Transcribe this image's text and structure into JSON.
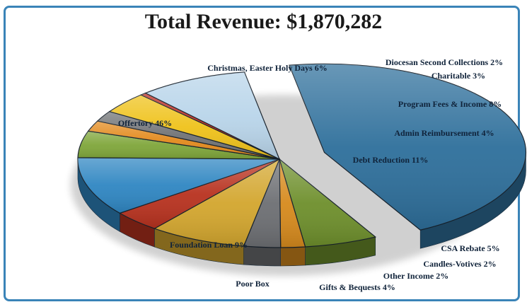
{
  "chart_data": {
    "type": "pie",
    "title": "Total Revenue: $1,870,282",
    "slices": [
      {
        "label": "Offertory 46%",
        "value": 46,
        "color": "#2e6f9b"
      },
      {
        "label": "Christmas, Easter Holy Days 6%",
        "value": 6,
        "color": "#6e8f2c"
      },
      {
        "label": "Diocesan Second Collections 2%",
        "value": 2,
        "color": "#d68a1d"
      },
      {
        "label": "Charitable 3%",
        "value": 3,
        "color": "#6d6f73"
      },
      {
        "label": "Program Fees & Income 8%",
        "value": 8,
        "color": "#d3a62e"
      },
      {
        "label": "Admin Reimbursement 4%",
        "value": 4,
        "color": "#b8321f"
      },
      {
        "label": "Debt Reduction 11%",
        "value": 11,
        "color": "#2f86c2"
      },
      {
        "label": "CSA Rebate 5%",
        "value": 5,
        "color": "#7fa63a"
      },
      {
        "label": "Candles-Votives 2%",
        "value": 2,
        "color": "#e38a1d"
      },
      {
        "label": "Other Income 2%",
        "value": 2,
        "color": "#707275"
      },
      {
        "label": "Gifts & Bequests 4%",
        "value": 4,
        "color": "#efc21a"
      },
      {
        "label": "Poor Box",
        "value": 0.5,
        "color": "#b8291e"
      },
      {
        "label": "Foundation Loan 9%",
        "value": 9,
        "color": "#b9d5ea"
      }
    ]
  },
  "colors": {
    "frame": "#3a84b8",
    "label_text": "#10233a"
  }
}
